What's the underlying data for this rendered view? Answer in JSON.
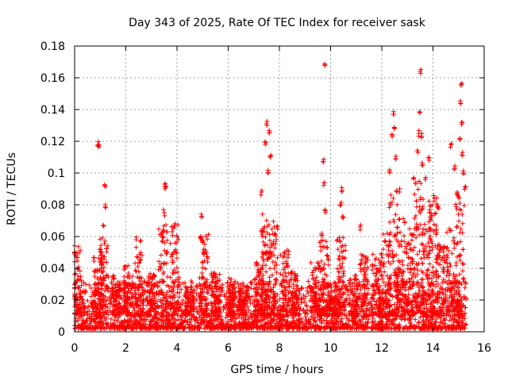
{
  "chart_data": {
    "type": "scatter",
    "title": "Day 343 of 2025, Rate Of TEC Index for receiver sask",
    "xlabel": "GPS time / hours",
    "ylabel": "ROTI / TECUs",
    "xlim": [
      0,
      16
    ],
    "ylim": [
      0,
      0.18
    ],
    "x_ticks": [
      "0",
      "2",
      "4",
      "6",
      "8",
      "10",
      "12",
      "14",
      "16"
    ],
    "y_ticks": [
      "0",
      "0.02",
      "0.04",
      "0.06",
      "0.08",
      "0.1",
      "0.12",
      "0.14",
      "0.16",
      "0.18"
    ],
    "grid": true,
    "marker": "+",
    "color": "#ff0000",
    "x_data_extent": [
      0,
      15.3
    ],
    "notable_points": [
      {
        "x": 0.92,
        "y": 0.117
      },
      {
        "x": 0.95,
        "y": 0.118
      },
      {
        "x": 1.18,
        "y": 0.092
      },
      {
        "x": 1.2,
        "y": 0.08
      },
      {
        "x": 1.12,
        "y": 0.067
      },
      {
        "x": 3.52,
        "y": 0.093
      },
      {
        "x": 3.55,
        "y": 0.091
      },
      {
        "x": 3.5,
        "y": 0.075
      },
      {
        "x": 4.95,
        "y": 0.074
      },
      {
        "x": 7.5,
        "y": 0.131
      },
      {
        "x": 7.6,
        "y": 0.125
      },
      {
        "x": 7.45,
        "y": 0.118
      },
      {
        "x": 7.65,
        "y": 0.11
      },
      {
        "x": 7.55,
        "y": 0.1
      },
      {
        "x": 7.3,
        "y": 0.088
      },
      {
        "x": 7.9,
        "y": 0.066
      },
      {
        "x": 9.78,
        "y": 0.168
      },
      {
        "x": 9.72,
        "y": 0.107
      },
      {
        "x": 9.75,
        "y": 0.094
      },
      {
        "x": 9.8,
        "y": 0.075
      },
      {
        "x": 9.65,
        "y": 0.062
      },
      {
        "x": 10.45,
        "y": 0.089
      },
      {
        "x": 10.4,
        "y": 0.08
      },
      {
        "x": 10.5,
        "y": 0.072
      },
      {
        "x": 11.15,
        "y": 0.066
      },
      {
        "x": 12.45,
        "y": 0.137
      },
      {
        "x": 12.5,
        "y": 0.128
      },
      {
        "x": 12.4,
        "y": 0.124
      },
      {
        "x": 12.55,
        "y": 0.109
      },
      {
        "x": 12.3,
        "y": 0.101
      },
      {
        "x": 12.7,
        "y": 0.09
      },
      {
        "x": 13.25,
        "y": 0.097
      },
      {
        "x": 13.5,
        "y": 0.164
      },
      {
        "x": 13.48,
        "y": 0.138
      },
      {
        "x": 13.45,
        "y": 0.125
      },
      {
        "x": 13.55,
        "y": 0.123
      },
      {
        "x": 13.4,
        "y": 0.114
      },
      {
        "x": 13.6,
        "y": 0.105
      },
      {
        "x": 13.7,
        "y": 0.096
      },
      {
        "x": 13.85,
        "y": 0.108
      },
      {
        "x": 14.05,
        "y": 0.084
      },
      {
        "x": 14.2,
        "y": 0.078
      },
      {
        "x": 14.7,
        "y": 0.118
      },
      {
        "x": 14.85,
        "y": 0.103
      },
      {
        "x": 14.95,
        "y": 0.088
      },
      {
        "x": 15.1,
        "y": 0.156
      },
      {
        "x": 15.08,
        "y": 0.144
      },
      {
        "x": 15.12,
        "y": 0.132
      },
      {
        "x": 15.05,
        "y": 0.121
      },
      {
        "x": 15.15,
        "y": 0.113
      },
      {
        "x": 15.2,
        "y": 0.1
      },
      {
        "x": 15.25,
        "y": 0.091
      },
      {
        "x": 15.0,
        "y": 0.085
      }
    ],
    "bursts": [
      {
        "x": 0.1,
        "peak": 0.055
      },
      {
        "x": 0.9,
        "peak": 0.052
      },
      {
        "x": 1.15,
        "peak": 0.062
      },
      {
        "x": 1.6,
        "peak": 0.036
      },
      {
        "x": 2.1,
        "peak": 0.042
      },
      {
        "x": 2.5,
        "peak": 0.06
      },
      {
        "x": 3.0,
        "peak": 0.038
      },
      {
        "x": 3.45,
        "peak": 0.068
      },
      {
        "x": 3.9,
        "peak": 0.07
      },
      {
        "x": 4.5,
        "peak": 0.03
      },
      {
        "x": 5.05,
        "peak": 0.062
      },
      {
        "x": 5.5,
        "peak": 0.038
      },
      {
        "x": 6.1,
        "peak": 0.034
      },
      {
        "x": 6.6,
        "peak": 0.03
      },
      {
        "x": 7.2,
        "peak": 0.045
      },
      {
        "x": 7.45,
        "peak": 0.078
      },
      {
        "x": 7.75,
        "peak": 0.07
      },
      {
        "x": 8.2,
        "peak": 0.052
      },
      {
        "x": 8.6,
        "peak": 0.038
      },
      {
        "x": 9.4,
        "peak": 0.044
      },
      {
        "x": 9.75,
        "peak": 0.058
      },
      {
        "x": 10.05,
        "peak": 0.03
      },
      {
        "x": 10.4,
        "peak": 0.06
      },
      {
        "x": 10.9,
        "peak": 0.036
      },
      {
        "x": 11.3,
        "peak": 0.05
      },
      {
        "x": 11.8,
        "peak": 0.05
      },
      {
        "x": 12.15,
        "peak": 0.062
      },
      {
        "x": 12.45,
        "peak": 0.09
      },
      {
        "x": 12.75,
        "peak": 0.072
      },
      {
        "x": 13.1,
        "peak": 0.066
      },
      {
        "x": 13.45,
        "peak": 0.095
      },
      {
        "x": 13.75,
        "peak": 0.08
      },
      {
        "x": 14.0,
        "peak": 0.085
      },
      {
        "x": 14.3,
        "peak": 0.055
      },
      {
        "x": 14.7,
        "peak": 0.065
      },
      {
        "x": 15.05,
        "peak": 0.082
      }
    ]
  }
}
